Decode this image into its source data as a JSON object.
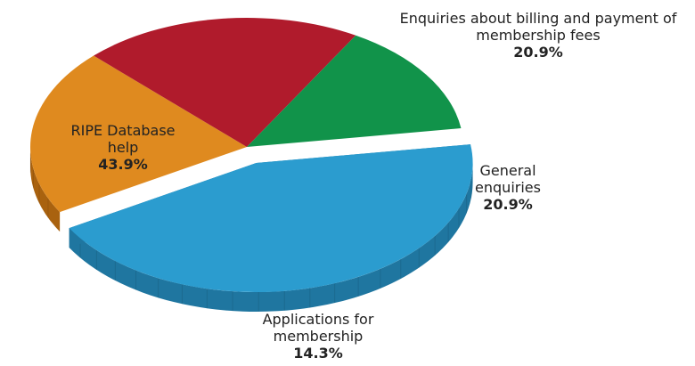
{
  "chart_data": {
    "type": "pie",
    "title": "",
    "slices": [
      {
        "label": "RIPE Database help",
        "label_lines": [
          "RIPE Database",
          "help"
        ],
        "value": 43.9,
        "value_text": "43.9%",
        "color": "#2b9ccf",
        "side_color": "#1f76a0",
        "exploded": true
      },
      {
        "label": "Enquiries about billing and payment of membership fees",
        "label_lines": [
          "Enquiries about billing and payment of",
          "membership fees"
        ],
        "value": 20.9,
        "value_text": "20.9%",
        "color": "#df8a1f",
        "side_color": "#a9620f"
      },
      {
        "label": "General enquiries",
        "label_lines": [
          "General",
          "enquiries"
        ],
        "value": 20.9,
        "value_text": "20.9%",
        "color": "#b01b2c",
        "side_color": "#7e1320"
      },
      {
        "label": "Applications for membership",
        "label_lines": [
          "Applications for",
          "membership"
        ],
        "value": 14.3,
        "value_text": "14.3%",
        "color": "#11934a",
        "side_color": "#0b6b35"
      }
    ]
  }
}
